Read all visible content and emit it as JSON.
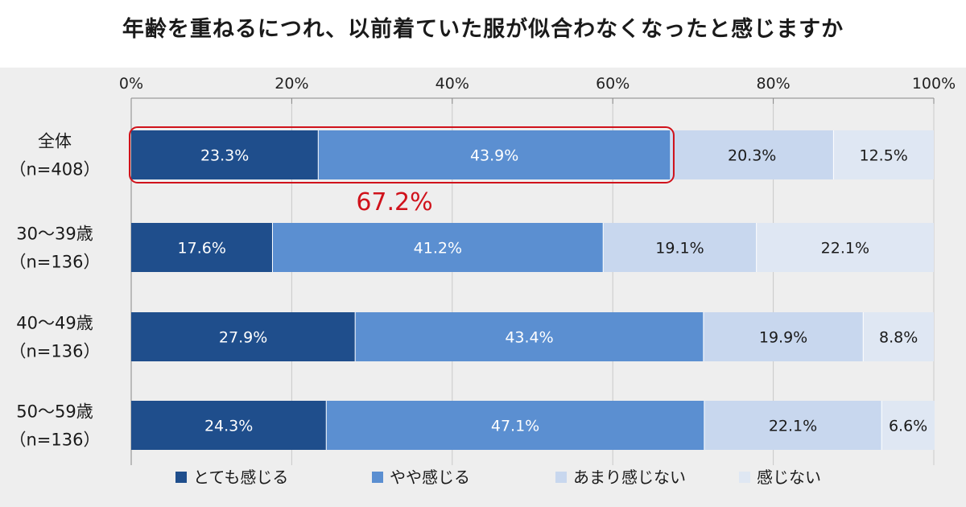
{
  "title": "年齢を重ねるにつれ、以前着ていた服が似合わなくなったと感じますか",
  "colors": {
    "very": "#1f4e8c",
    "somewhat": "#5b8fd1",
    "not_much": "#c8d7ee",
    "not_at_all": "#dfe7f3",
    "highlight": "#d0121b",
    "background": "#eeeeee"
  },
  "chart_data": {
    "type": "bar",
    "orientation": "horizontal",
    "stacked": true,
    "percent": true,
    "xlim": [
      0,
      100
    ],
    "x_ticks": [
      "0%",
      "20%",
      "40%",
      "60%",
      "80%",
      "100%"
    ],
    "categories": [
      [
        "全体",
        "（n=408）"
      ],
      [
        "30～39歳",
        "（n=136）"
      ],
      [
        "40～49歳",
        "（n=136）"
      ],
      [
        "50～59歳",
        "（n=136）"
      ]
    ],
    "series": [
      {
        "name": "とても感じる",
        "color": "#1f4e8c",
        "label_color": "#ffffff",
        "values": [
          23.3,
          17.6,
          27.9,
          24.3
        ]
      },
      {
        "name": "やや感じる",
        "color": "#5b8fd1",
        "label_color": "#ffffff",
        "values": [
          43.9,
          41.2,
          43.4,
          47.1
        ]
      },
      {
        "name": "あまり感じない",
        "color": "#c8d7ee",
        "label_color": "#1a1a1a",
        "values": [
          20.3,
          19.1,
          19.9,
          22.1
        ]
      },
      {
        "name": "感じない",
        "color": "#dfe7f3",
        "label_color": "#1a1a1a",
        "values": [
          12.5,
          22.1,
          8.8,
          6.6
        ]
      }
    ],
    "legend_position": "bottom",
    "annotation": {
      "text": "67.2%",
      "row_index": 0,
      "series_spanned": 2,
      "color": "#d0121b"
    }
  }
}
